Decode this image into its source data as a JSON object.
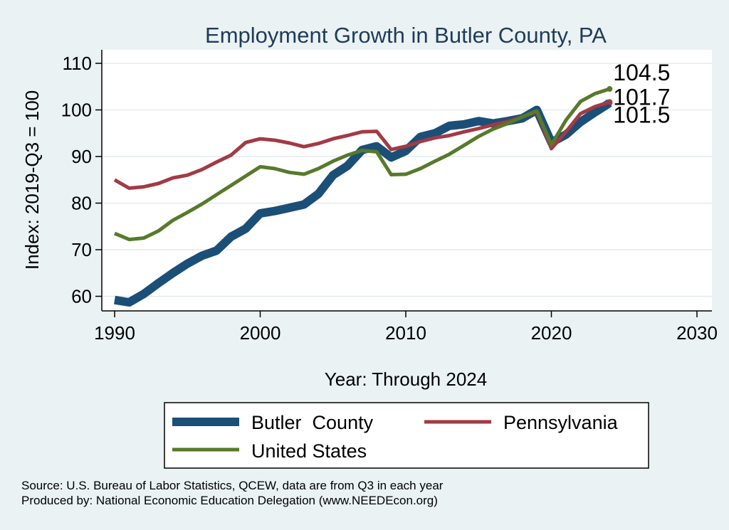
{
  "chart_data": {
    "type": "line",
    "title": "Employment Growth in Butler County, PA",
    "xlabel": "Year: Through 2024",
    "ylabel": "Index: 2019-Q3 = 100",
    "xlim": [
      1990,
      2030
    ],
    "ylim": [
      57,
      112
    ],
    "x_ticks": [
      "1990",
      "2000",
      "2010",
      "2020",
      "2030"
    ],
    "y_ticks": [
      "60",
      "70",
      "80",
      "90",
      "100",
      "110"
    ],
    "grid": true,
    "legend_position": "bottom",
    "x": [
      1990,
      1991,
      1992,
      1993,
      1994,
      1995,
      1996,
      1997,
      1998,
      1999,
      2000,
      2001,
      2002,
      2003,
      2004,
      2005,
      2006,
      2007,
      2008,
      2009,
      2010,
      2011,
      2012,
      2013,
      2014,
      2015,
      2016,
      2017,
      2018,
      2019,
      2020,
      2021,
      2022,
      2023,
      2024
    ],
    "series": [
      {
        "name": "Butler  County",
        "color": "#1b4f78",
        "end_label": "101.5",
        "values": [
          59.2,
          58.7,
          60.5,
          62.8,
          65.0,
          67.0,
          68.7,
          69.8,
          72.8,
          74.5,
          77.8,
          78.3,
          79.0,
          79.7,
          82.0,
          86.0,
          88.0,
          91.4,
          92.2,
          89.8,
          91.2,
          94.2,
          95.0,
          96.6,
          96.9,
          97.6,
          97.1,
          97.6,
          98.2,
          100.0,
          93.0,
          94.7,
          97.4,
          99.5,
          101.5
        ]
      },
      {
        "name": "Pennsylvania",
        "color": "#a23a44",
        "end_label": "101.7",
        "values": [
          85.0,
          83.2,
          83.5,
          84.2,
          85.4,
          86.0,
          87.2,
          88.8,
          90.3,
          93.0,
          93.8,
          93.5,
          92.9,
          92.1,
          92.8,
          93.8,
          94.5,
          95.3,
          95.4,
          91.5,
          92.2,
          93.2,
          94.0,
          94.5,
          95.3,
          96.0,
          96.8,
          97.5,
          98.5,
          99.6,
          91.7,
          95.3,
          99.2,
          100.7,
          101.7
        ]
      },
      {
        "name": "United States",
        "color": "#567a2a",
        "end_label": "104.5",
        "values": [
          73.5,
          72.2,
          72.5,
          74.0,
          76.3,
          78.0,
          79.8,
          81.8,
          83.8,
          85.8,
          87.8,
          87.4,
          86.6,
          86.2,
          87.4,
          89.0,
          90.3,
          91.3,
          91.0,
          86.1,
          86.2,
          87.4,
          89.0,
          90.5,
          92.4,
          94.3,
          95.9,
          97.1,
          98.5,
          99.8,
          92.5,
          97.8,
          101.8,
          103.5,
          104.5
        ]
      }
    ]
  },
  "legend": {
    "items": [
      "Butler  County",
      "Pennsylvania",
      "United States"
    ]
  },
  "source": {
    "line1": "Source: U.S. Bureau of Labor Statistics, QCEW, data are from Q3 in each year",
    "line2": "Produced by: National Economic Education Delegation (www.NEEDEcon.org)"
  }
}
